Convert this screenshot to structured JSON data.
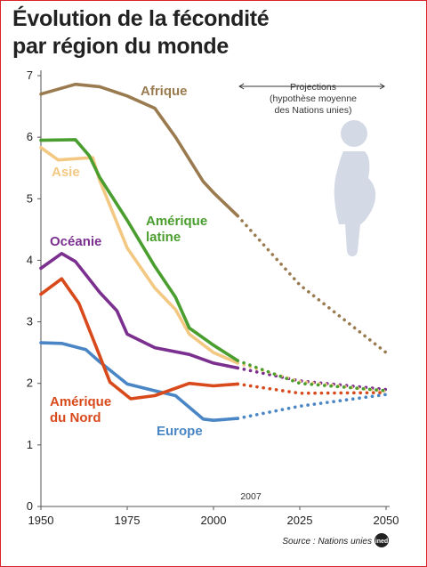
{
  "title_line1": "Évolution de la fécondité",
  "title_line2": "par région du monde",
  "projection_text": [
    "Projections",
    "(hypothèse moyenne",
    "des Nations unies)"
  ],
  "year_marker": "2007",
  "source": "Source : Nations unies",
  "source_logo": "ined",
  "colors": {
    "afrique": "#9a7b50",
    "amerique_latine": "#4a9e2f",
    "asie": "#f3c882",
    "oceanie": "#7b2f8f",
    "amerique_nord": "#d84a1b",
    "europe": "#4a86c5",
    "silhouette": "#d4d9e6",
    "frame": "#d8232a"
  },
  "chart_data": {
    "type": "line",
    "title": "Évolution de la fécondité par région du monde",
    "xlim": [
      1950,
      2050
    ],
    "ylim": [
      0,
      7
    ],
    "x_ticks": [
      1950,
      1975,
      2000,
      2025,
      2050
    ],
    "y_ticks": [
      0,
      1,
      2,
      3,
      4,
      5,
      6,
      7
    ],
    "grid": false,
    "projection_start": 2007,
    "projection_end": 2050,
    "series": [
      {
        "name": "Afrique",
        "key": "afrique",
        "x": [
          1950,
          1960,
          1967,
          1975,
          1983,
          1989,
          1997,
          2000,
          2007
        ],
        "y": [
          6.7,
          6.86,
          6.82,
          6.67,
          6.47,
          6.0,
          5.28,
          5.1,
          4.72
        ],
        "projection": {
          "x": [
            2007,
            2025,
            2050
          ],
          "y": [
            4.72,
            3.6,
            2.5
          ]
        }
      },
      {
        "name": "Amérique latine",
        "key": "amerique_latine",
        "x": [
          1950,
          1960,
          1964,
          1967,
          1975,
          1983,
          1989,
          1993,
          2000,
          2007
        ],
        "y": [
          5.95,
          5.96,
          5.7,
          5.35,
          4.65,
          3.9,
          3.4,
          2.9,
          2.62,
          2.37
        ],
        "projection": {
          "x": [
            2007,
            2025,
            2050
          ],
          "y": [
            2.37,
            2.0,
            1.88
          ]
        }
      },
      {
        "name": "Asie",
        "key": "asie",
        "x": [
          1950,
          1955,
          1965,
          1967,
          1975,
          1983,
          1989,
          1993,
          2000,
          2007
        ],
        "y": [
          5.83,
          5.63,
          5.67,
          5.3,
          4.2,
          3.55,
          3.2,
          2.8,
          2.5,
          2.33
        ],
        "projection": {
          "x": [
            2007,
            2025,
            2050
          ],
          "y": [
            2.33,
            2.03,
            1.87
          ]
        }
      },
      {
        "name": "Océanie",
        "key": "oceanie",
        "x": [
          1950,
          1956,
          1960,
          1967,
          1972,
          1975,
          1983,
          1993,
          2000,
          2007
        ],
        "y": [
          3.87,
          4.11,
          3.98,
          3.48,
          3.18,
          2.8,
          2.58,
          2.47,
          2.33,
          2.25
        ],
        "projection": {
          "x": [
            2007,
            2025,
            2050
          ],
          "y": [
            2.25,
            2.04,
            1.9
          ]
        }
      },
      {
        "name": "Amérique du Nord",
        "key": "amerique_nord",
        "x": [
          1950,
          1956,
          1961,
          1967,
          1970,
          1976,
          1983,
          1993,
          2000,
          2007
        ],
        "y": [
          3.45,
          3.7,
          3.3,
          2.45,
          2.02,
          1.75,
          1.8,
          2.0,
          1.96,
          1.99
        ],
        "projection": {
          "x": [
            2007,
            2025,
            2050
          ],
          "y": [
            1.99,
            1.84,
            1.85
          ]
        }
      },
      {
        "name": "Europe",
        "key": "europe",
        "x": [
          1950,
          1956,
          1963,
          1967,
          1975,
          1983,
          1989,
          1997,
          2000,
          2007
        ],
        "y": [
          2.66,
          2.65,
          2.55,
          2.35,
          1.99,
          1.88,
          1.8,
          1.42,
          1.4,
          1.43
        ],
        "projection": {
          "x": [
            2007,
            2025,
            2050
          ],
          "y": [
            1.43,
            1.63,
            1.82
          ]
        }
      }
    ]
  }
}
